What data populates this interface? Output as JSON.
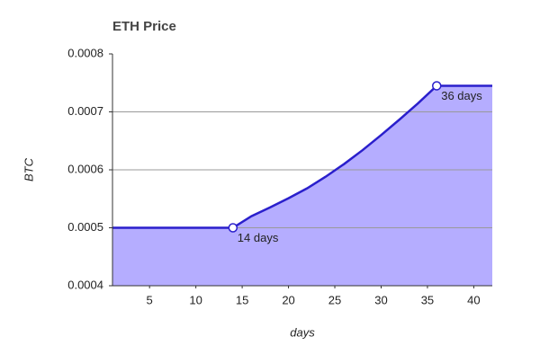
{
  "chart_data": {
    "type": "area",
    "title": "ETH Price",
    "x_label": "days",
    "y_label": "BTC",
    "x": [
      1,
      14,
      16,
      18,
      20,
      22,
      24,
      26,
      28,
      30,
      32,
      34,
      36,
      42
    ],
    "values": [
      0.0005,
      0.0005,
      0.00052,
      0.000535,
      0.000551,
      0.000568,
      0.000588,
      0.00061,
      0.000634,
      0.00066,
      0.000687,
      0.000715,
      0.000745,
      0.000745
    ],
    "color": "#2a1fcc",
    "fill": "#b5adff",
    "xlim": [
      1,
      42
    ],
    "xticks": [
      5,
      10,
      15,
      20,
      25,
      30,
      35,
      40
    ],
    "ylim": [
      0.0004,
      0.0008
    ],
    "yticks": [
      0.0004,
      0.0005,
      0.0006,
      0.0007,
      0.0008
    ],
    "grid": true,
    "annotations": [
      {
        "x": 14,
        "y": 0.0005,
        "label": "14 days"
      },
      {
        "x": 36,
        "y": 0.000745,
        "label": "36 days"
      }
    ]
  }
}
